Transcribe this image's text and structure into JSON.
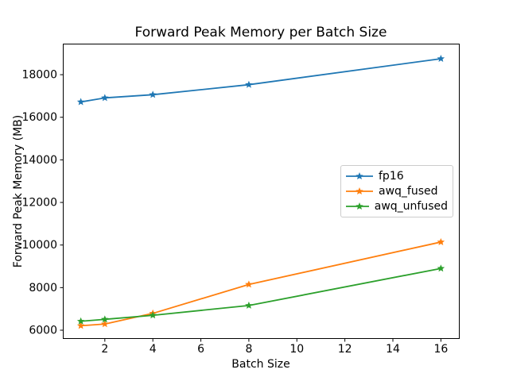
{
  "figure": {
    "title": "Forward Peak Memory per Batch Size",
    "xlabel": "Batch Size",
    "ylabel": "Forward Peak Memory (MB)"
  },
  "chart_data": {
    "type": "line",
    "title": "Forward Peak Memory per Batch Size",
    "xlabel": "Batch Size",
    "ylabel": "Forward Peak Memory (MB)",
    "x": [
      1,
      2,
      4,
      8,
      16
    ],
    "series": [
      {
        "name": "fp16",
        "color": "#1f77b4",
        "marker": "star",
        "values": [
          16720,
          16910,
          17060,
          17530,
          18750
        ]
      },
      {
        "name": "awq_fused",
        "color": "#ff7f0e",
        "marker": "star",
        "values": [
          6210,
          6290,
          6790,
          8150,
          10140
        ]
      },
      {
        "name": "awq_unfused",
        "color": "#2ca02c",
        "marker": "star",
        "values": [
          6420,
          6510,
          6700,
          7160,
          8900
        ]
      }
    ],
    "xticks": [
      2,
      4,
      6,
      8,
      10,
      12,
      14,
      16
    ],
    "yticks": [
      6000,
      8000,
      10000,
      12000,
      14000,
      16000,
      18000
    ],
    "xlim": [
      0.25,
      16.75
    ],
    "ylim": [
      5590,
      19420
    ],
    "grid": false,
    "legend_position": "center-right"
  },
  "colors": {
    "background": "#ffffff",
    "axes": "#000000",
    "legend_border": "#cccccc"
  }
}
